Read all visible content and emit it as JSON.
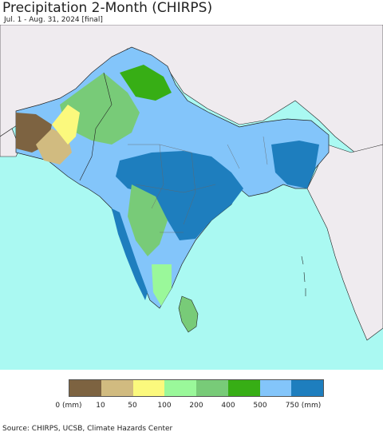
{
  "header": {
    "title": "Precipitation 2-Month (CHIRPS)",
    "subtitle": "Jul. 1 - Aug. 31, 2024 [final]"
  },
  "legend": {
    "categories": [
      {
        "color": "#7d6341"
      },
      {
        "color": "#d1bb80"
      },
      {
        "color": "#fbf97d"
      },
      {
        "color": "#9af89a"
      },
      {
        "color": "#78cb78"
      },
      {
        "color": "#37ae15"
      },
      {
        "color": "#83c5fa"
      },
      {
        "color": "#1e7ebe"
      }
    ],
    "labels": [
      "0 (mm)",
      "10",
      "50",
      "100",
      "200",
      "400",
      "500",
      "750 (mm)"
    ]
  },
  "colors": {
    "ocean": "#aaf9f2",
    "outside_land": "#efebef",
    "border": "#222222"
  },
  "footer": {
    "source": "Source: CHIRPS, UCSB, Climate Hazards Center"
  }
}
